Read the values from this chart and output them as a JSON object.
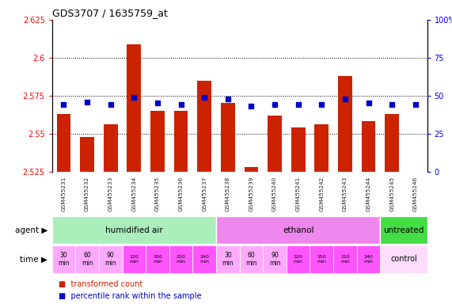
{
  "title": "GDS3707 / 1635759_at",
  "samples": [
    "GSM455231",
    "GSM455232",
    "GSM455233",
    "GSM455234",
    "GSM455235",
    "GSM455236",
    "GSM455237",
    "GSM455238",
    "GSM455239",
    "GSM455240",
    "GSM455241",
    "GSM455242",
    "GSM455243",
    "GSM455244",
    "GSM455245",
    "GSM455246"
  ],
  "bar_values": [
    2.563,
    2.548,
    2.556,
    2.609,
    2.565,
    2.565,
    2.585,
    2.57,
    2.528,
    2.562,
    2.554,
    2.556,
    2.588,
    2.558,
    2.563,
    2.524
  ],
  "blue_values": [
    44,
    46,
    44,
    49,
    45,
    44,
    49,
    48,
    43,
    44,
    44,
    44,
    48,
    45,
    44,
    44
  ],
  "ylim": [
    2.525,
    2.625
  ],
  "yticks": [
    2.525,
    2.55,
    2.575,
    2.6,
    2.625
  ],
  "ytick_labels": [
    "2.525",
    "2.55",
    "2.575",
    "2.6",
    "2.625"
  ],
  "y2lim": [
    0,
    100
  ],
  "y2ticks": [
    0,
    25,
    50,
    75,
    100
  ],
  "y2tick_labels": [
    "0",
    "25",
    "50",
    "75",
    "100%"
  ],
  "bar_color": "#cc2200",
  "blue_color": "#0000cc",
  "bar_baseline": 2.525,
  "agent_groups": [
    {
      "label": "humidified air",
      "start": 0,
      "end": 7,
      "color": "#aaeebb"
    },
    {
      "label": "ethanol",
      "start": 7,
      "end": 14,
      "color": "#ee88ee"
    },
    {
      "label": "untreated",
      "start": 14,
      "end": 16,
      "color": "#44dd44"
    }
  ],
  "time_colors_air": [
    "#ffaaff",
    "#ffaaff",
    "#ffaaff",
    "#ff55ff",
    "#ff55ff",
    "#ff55ff",
    "#ff55ff"
  ],
  "time_colors_eth": [
    "#ffaaff",
    "#ffaaff",
    "#ffaaff",
    "#ff55ff",
    "#ff55ff",
    "#ff55ff",
    "#ff55ff"
  ],
  "time_color_control": "#ffddff",
  "time_labels_air": [
    "30\nmin",
    "60\nmin",
    "90\nmin",
    "120\nmin",
    "150\nmin",
    "210\nmin",
    "240\nmin"
  ],
  "time_labels_eth": [
    "30\nmin",
    "60\nmin",
    "90\nmin",
    "120\nmin",
    "150\nmin",
    "210\nmin",
    "240\nmin"
  ],
  "bg_color": "#ffffff",
  "plot_bg": "#ffffff",
  "xtick_bg": "#cccccc",
  "separator_color": "#aaaaaa",
  "dotted_line_color": "#000000"
}
